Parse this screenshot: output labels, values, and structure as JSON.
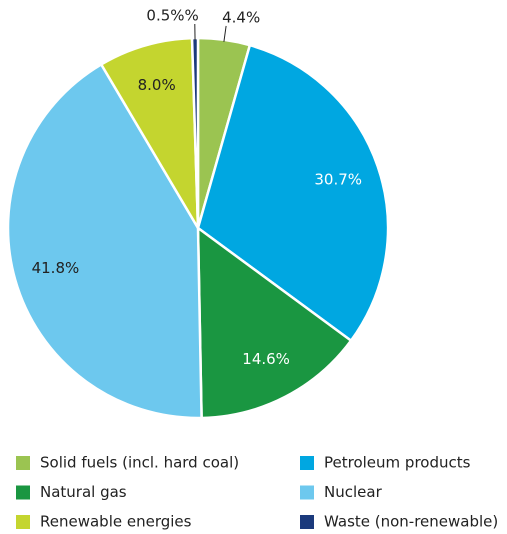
{
  "chart_data": {
    "type": "pie",
    "categories": [
      "Solid fuels (incl. hard coal)",
      "Petroleum products",
      "Natural gas",
      "Nuclear",
      "Renewable energies",
      "Waste (non-renewable)"
    ],
    "values": [
      4.4,
      30.7,
      14.6,
      41.8,
      8.0,
      0.5
    ],
    "value_labels": [
      "4.4%",
      "30.7%",
      "14.6%",
      "41.8%",
      "8.0%",
      "0.5%%"
    ],
    "colors": [
      "#9bc451",
      "#00a7e1",
      "#1a9641",
      "#6dc8ee",
      "#c4d52f",
      "#1b3a7c"
    ],
    "legend": "bottom"
  }
}
